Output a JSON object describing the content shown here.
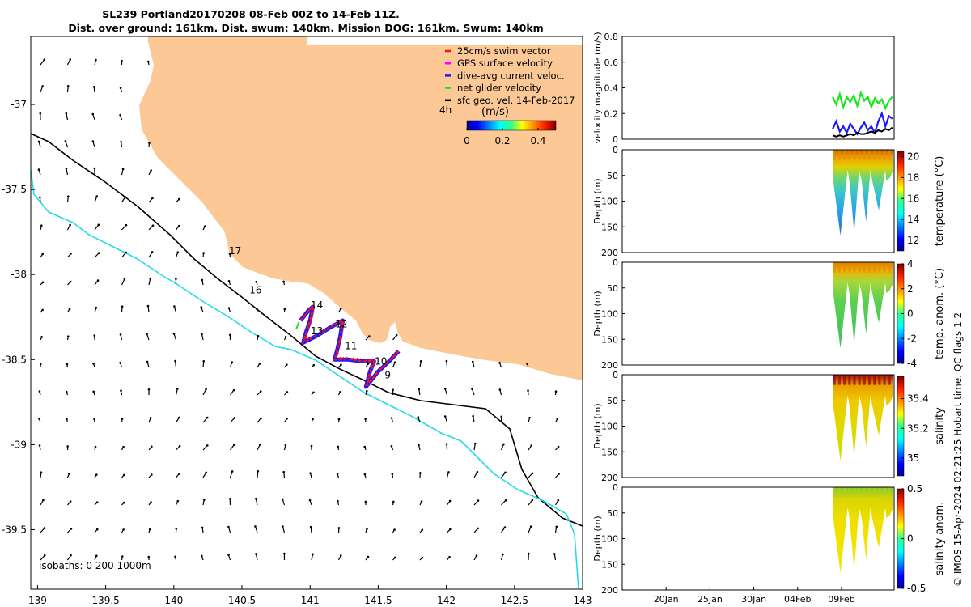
{
  "figure": {
    "title_line1": "SL239 Portland20170208 08-Feb 00Z to 14-Feb 11Z.",
    "title_line2": "Dist. over ground: 161km. Dist. swum: 140km. Mission DOG: 161km. Swum: 140km",
    "credit": "© IMOS 15-Apr-2024 02:21:25 Hobart time. QC flags 1  2"
  },
  "colors": {
    "land": "#fbc896",
    "isobath_200": "#000000",
    "isobath_1000": "#22dde6",
    "swim": "#ff1010",
    "gps": "#ff00ff",
    "dive_avg": "#1a1aff",
    "net": "#19e619",
    "geo": "#000000"
  },
  "chart_data": [
    {
      "type": "scatter",
      "name": "map",
      "xlim": [
        138.95,
        143.0
      ],
      "ylim": [
        -39.85,
        -36.6
      ],
      "xticks": [
        "139",
        "139.5",
        "140",
        "140.5",
        "141",
        "141.5",
        "142",
        "142.5",
        "143"
      ],
      "xtick_values": [
        139,
        139.5,
        140,
        140.5,
        141,
        141.5,
        142,
        142.5,
        143
      ],
      "yticks": [
        "-37",
        "-37.5",
        "-38",
        "-38.5",
        "-39",
        "-39.5"
      ],
      "ytick_values": [
        -37,
        -37.5,
        -38,
        -38.5,
        -39,
        -39.5
      ],
      "legend": {
        "placement": "top-right",
        "entries": [
          {
            "label": "25cm/s swim vector",
            "color": "#ff1010"
          },
          {
            "label": "GPS surface velocity",
            "color": "#ff00ff"
          },
          {
            "label": "dive-avg current veloc.",
            "color": "#1a1aff"
          },
          {
            "label": "net glider velocity",
            "color": "#19e619"
          },
          {
            "label": "sfc geo. vel. 14-Feb-2017",
            "color": "#000000"
          }
        ]
      },
      "time_step_label": "4h",
      "colorbar": {
        "label": "(m/s)",
        "ticks": [
          "0",
          "0.2",
          "0.4"
        ],
        "tick_values": [
          0,
          0.2,
          0.4
        ],
        "range": [
          0,
          0.5
        ]
      },
      "isobath_label": "isobaths: 0   200   1000m",
      "track_labels": [
        {
          "text": "17",
          "lon": 140.45,
          "lat": -37.88
        },
        {
          "text": "16",
          "lon": 140.6,
          "lat": -38.11
        },
        {
          "text": "14",
          "lon": 141.05,
          "lat": -38.2
        },
        {
          "text": "13",
          "lon": 141.05,
          "lat": -38.35
        },
        {
          "text": "12",
          "lon": 141.23,
          "lat": -38.31
        },
        {
          "text": "11",
          "lon": 141.3,
          "lat": -38.44
        },
        {
          "text": "10",
          "lon": 141.52,
          "lat": -38.53
        },
        {
          "text": "9",
          "lon": 141.57,
          "lat": -38.61
        }
      ],
      "track": [
        [
          140.93,
          -38.27
        ],
        [
          140.96,
          -38.24
        ],
        [
          140.99,
          -38.21
        ],
        [
          141.02,
          -38.19
        ],
        [
          141.0,
          -38.27
        ],
        [
          140.97,
          -38.34
        ],
        [
          140.95,
          -38.4
        ],
        [
          141.05,
          -38.36
        ],
        [
          141.15,
          -38.31
        ],
        [
          141.24,
          -38.27
        ],
        [
          141.22,
          -38.37
        ],
        [
          141.2,
          -38.44
        ],
        [
          141.18,
          -38.5
        ],
        [
          141.28,
          -38.5
        ],
        [
          141.38,
          -38.51
        ],
        [
          141.47,
          -38.51
        ],
        [
          141.44,
          -38.57
        ],
        [
          141.41,
          -38.66
        ],
        [
          141.5,
          -38.57
        ],
        [
          141.58,
          -38.51
        ],
        [
          141.65,
          -38.45
        ]
      ]
    },
    {
      "type": "line",
      "name": "velocity-magnitude",
      "ylabel": "velocity magnitude (m/s)",
      "ylim": [
        0,
        0.8
      ],
      "yticks": [
        "0",
        "0.2",
        "0.4",
        "0.6",
        "0.8"
      ],
      "ytick_values": [
        0,
        0.2,
        0.4,
        0.6,
        0.8
      ],
      "x_range_days": [
        15.0,
        46.0
      ],
      "series": [
        {
          "color": "#19e619",
          "x": [
            39.0,
            39.4,
            39.8,
            40.2,
            40.6,
            41.0,
            41.4,
            41.8,
            42.2,
            42.6,
            43.0,
            43.4,
            43.8,
            44.2,
            44.6,
            45.0,
            45.4,
            45.8
          ],
          "y": [
            0.33,
            0.27,
            0.35,
            0.25,
            0.33,
            0.29,
            0.34,
            0.26,
            0.36,
            0.3,
            0.33,
            0.25,
            0.32,
            0.28,
            0.31,
            0.24,
            0.3,
            0.33
          ]
        },
        {
          "color": "#1a1aff",
          "x": [
            39.0,
            39.4,
            39.8,
            40.2,
            40.6,
            41.0,
            41.4,
            41.8,
            42.2,
            42.6,
            43.0,
            43.4,
            43.8,
            44.2,
            44.6,
            45.0,
            45.4,
            45.8
          ],
          "y": [
            0.08,
            0.14,
            0.06,
            0.1,
            0.05,
            0.12,
            0.08,
            0.04,
            0.09,
            0.13,
            0.07,
            0.1,
            0.05,
            0.14,
            0.2,
            0.1,
            0.18,
            0.16
          ]
        },
        {
          "color": "#000000",
          "x": [
            39.0,
            39.4,
            39.8,
            40.2,
            40.6,
            41.0,
            41.4,
            41.8,
            42.2,
            42.6,
            43.0,
            43.4,
            43.8,
            44.2,
            44.6,
            45.0,
            45.4,
            45.8
          ],
          "y": [
            0.03,
            0.02,
            0.03,
            0.02,
            0.03,
            0.04,
            0.03,
            0.05,
            0.04,
            0.04,
            0.05,
            0.06,
            0.05,
            0.07,
            0.06,
            0.08,
            0.07,
            0.09
          ]
        }
      ]
    },
    {
      "type": "heatmap",
      "name": "temperature",
      "ylabel": "Depth (m)",
      "cbar_label": "temperature (°C)",
      "ylim": [
        0,
        200
      ],
      "yticks": [
        "0",
        "50",
        "100",
        "150",
        "200"
      ],
      "ytick_values": [
        0,
        50,
        100,
        150,
        200
      ],
      "cbar_ticks": [
        "12",
        "14",
        "16",
        "18",
        "20"
      ],
      "cbar_values": [
        12,
        14,
        16,
        18,
        20
      ],
      "cbar_range": [
        11,
        20.5
      ]
    },
    {
      "type": "heatmap",
      "name": "temp-anomaly",
      "ylabel": "Depth (m)",
      "cbar_label": "temp. anom. (°C)",
      "ylim": [
        0,
        200
      ],
      "yticks": [
        "0",
        "50",
        "100",
        "150",
        "200"
      ],
      "ytick_values": [
        0,
        50,
        100,
        150,
        200
      ],
      "cbar_ticks": [
        "4",
        "2",
        "0",
        "-2",
        "-4"
      ],
      "cbar_values": [
        4,
        2,
        0,
        -2,
        -4
      ],
      "cbar_range": [
        -4,
        4
      ]
    },
    {
      "type": "heatmap",
      "name": "salinity",
      "ylabel": "Depth (m)",
      "cbar_label": "salinity",
      "ylim": [
        0,
        200
      ],
      "yticks": [
        "0",
        "50",
        "100",
        "150",
        "200"
      ],
      "ytick_values": [
        0,
        50,
        100,
        150,
        200
      ],
      "cbar_ticks": [
        "35.4",
        "35.2",
        "35"
      ],
      "cbar_values": [
        35.4,
        35.2,
        35.0
      ],
      "cbar_range": [
        34.88,
        35.55
      ]
    },
    {
      "type": "heatmap",
      "name": "salinity-anomaly",
      "ylabel": "Depth (m)",
      "cbar_label": "salinity anom.",
      "ylim": [
        0,
        200
      ],
      "yticks": [
        "0",
        "50",
        "100",
        "150",
        "200"
      ],
      "ytick_values": [
        0,
        50,
        100,
        150,
        200
      ],
      "cbar_ticks": [
        "0.5",
        "0",
        "-0.5"
      ],
      "cbar_values": [
        0.5,
        0,
        -0.5
      ],
      "cbar_range": [
        -0.5,
        0.5
      ],
      "xticks": [
        "20Jan",
        "25Jan",
        "30Jan",
        "04Feb",
        "09Feb"
      ],
      "xtick_values": [
        20,
        25,
        30,
        35,
        40
      ]
    }
  ]
}
